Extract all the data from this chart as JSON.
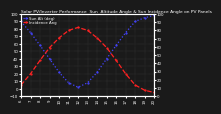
{
  "title": "Solar PV/Inverter Performance  Sun  Altitude Angle & Sun Incidence Angle on PV Panels",
  "legend_blue": "Sun Alt (deg)",
  "legend_red": "Incidence Ang",
  "x_start": 6,
  "x_end": 20,
  "x_ticks": [
    6,
    7,
    8,
    9,
    10,
    11,
    12,
    13,
    14,
    15,
    16,
    17,
    18,
    19,
    20
  ],
  "blue_x": [
    6,
    7,
    8,
    9,
    10,
    11,
    12,
    13,
    14,
    15,
    16,
    17,
    18,
    19,
    20
  ],
  "blue_y": [
    90,
    75,
    58,
    40,
    22,
    8,
    2,
    8,
    22,
    40,
    58,
    75,
    90,
    95,
    98
  ],
  "red_x": [
    6,
    7,
    8,
    9,
    10,
    11,
    12,
    13,
    14,
    15,
    16,
    17,
    18,
    19,
    20
  ],
  "red_y": [
    5,
    20,
    38,
    55,
    68,
    78,
    82,
    78,
    68,
    55,
    38,
    20,
    5,
    -2,
    -5
  ],
  "ylim_left": [
    -10,
    100
  ],
  "ylim_right": [
    0,
    100
  ],
  "plot_bg": "#1a1a1a",
  "figure_bg": "#1a1a1a",
  "blue_color": "#4444ff",
  "red_color": "#ff2222",
  "grid_color": "#555555",
  "title_fontsize": 3.2,
  "legend_fontsize": 2.8,
  "tick_fontsize": 2.8,
  "linewidth": 0.9,
  "markersize": 1.2,
  "linestyle_blue": "dotted",
  "linestyle_red": "dashed",
  "text_color": "#ffffff",
  "right_yticks": [
    0,
    10,
    20,
    30,
    40,
    50,
    60,
    70,
    80,
    90,
    100
  ],
  "left_yticks": [
    -10,
    0,
    10,
    20,
    30,
    40,
    50,
    60,
    70,
    80,
    90,
    100
  ]
}
